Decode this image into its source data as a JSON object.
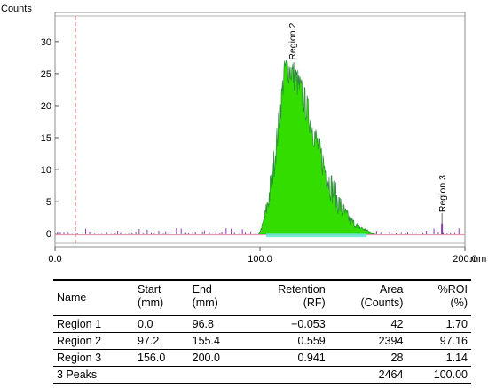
{
  "chart_data": {
    "type": "area",
    "ylabel": "Counts",
    "xunit": "mm",
    "xlim": [
      0,
      200
    ],
    "ylim": [
      -1.5,
      34
    ],
    "yticks": [
      0,
      5,
      10,
      15,
      20,
      25,
      30
    ],
    "xticks": [
      {
        "value": 0,
        "label": "0.0"
      },
      {
        "value": 100,
        "label": "100.0"
      },
      {
        "value": 200,
        "label": "200.0"
      }
    ],
    "origin_marker_x": 10,
    "peak_fill_color": "#33dd00",
    "peak_edge_color": "#2d8a3e",
    "noise_color": "#8a3aaa",
    "baseline_color": "#e29ab0",
    "regions": [
      {
        "name": "Region 1",
        "start": 0.0,
        "end": 96.8
      },
      {
        "name": "Region 2",
        "start": 97.2,
        "end": 155.4,
        "label_x": 115.5
      },
      {
        "name": "Region 3",
        "start": 156.0,
        "end": 200.0,
        "label_x": 188.8
      }
    ]
  },
  "table": {
    "headers": {
      "name": "Name",
      "start": [
        "Start",
        "(mm)"
      ],
      "end": [
        "End",
        "(mm)"
      ],
      "retention": [
        "Retention",
        "(RF)"
      ],
      "area": [
        "Area",
        "(Counts)"
      ],
      "roi": [
        "%ROI",
        "(%)"
      ]
    },
    "rows": [
      {
        "name": "Region 1",
        "start": "0.0",
        "end": "96.8",
        "retention": "−0.053",
        "area": "42",
        "roi": "1.70"
      },
      {
        "name": "Region 2",
        "start": "97.2",
        "end": "155.4",
        "retention": "0.559",
        "area": "2394",
        "roi": "97.16"
      },
      {
        "name": "Region 3",
        "start": "156.0",
        "end": "200.0",
        "retention": "0.941",
        "area": "28",
        "roi": "1.14"
      }
    ],
    "footer": {
      "name": "3 Peaks",
      "area": "2464",
      "roi": "100.00"
    }
  }
}
